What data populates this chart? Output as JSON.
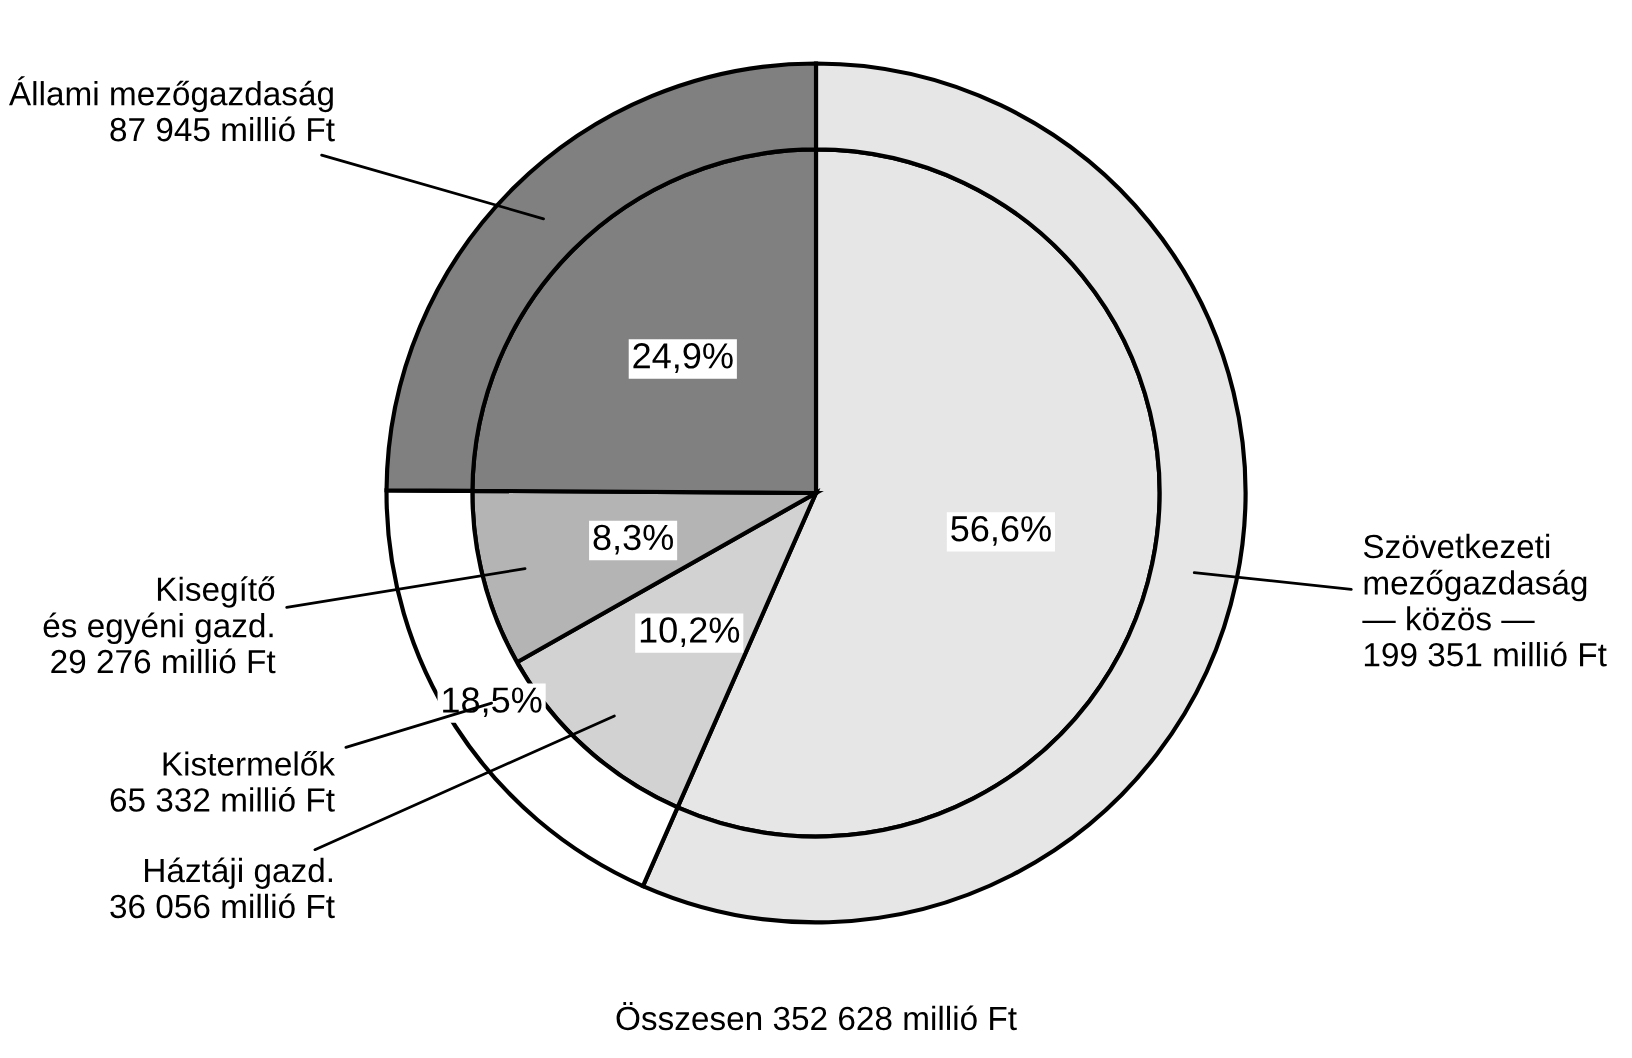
{
  "chart_data": {
    "type": "pie",
    "categories": [
      "Szövetkezeti\nmezőgazdaság\n— közös —\n199 351 millió Ft",
      "Háztáji gazd.\n36 056 millió Ft",
      "Kisegítő\nés egyéni gazd.\n29 276 millió Ft",
      "Állami mezőgazdaság\n87 945 millió Ft"
    ],
    "annotations": [
      "Összesen 352 628 millió Ft",
      "Kistermelők\n65 332 millió Ft"
    ],
    "series": [
      {
        "values": [
          56.6,
          10.2,
          8.3,
          24.9
        ],
        "colors": [
          "#e6e6e6",
          "#d2d2d2",
          "#b4b4b4",
          "#808080"
        ],
        "value_labels": [
          "56,6%",
          "10,2%",
          "8,3%",
          "24,9%"
        ]
      },
      {
        "values": [
          56.6,
          18.5,
          null,
          24.9
        ],
        "colors": [
          "#e6e6e6",
          "#ffffff",
          null,
          "#808080"
        ],
        "value_labels": [
          null,
          "18,5%",
          null,
          null
        ]
      }
    ]
  }
}
